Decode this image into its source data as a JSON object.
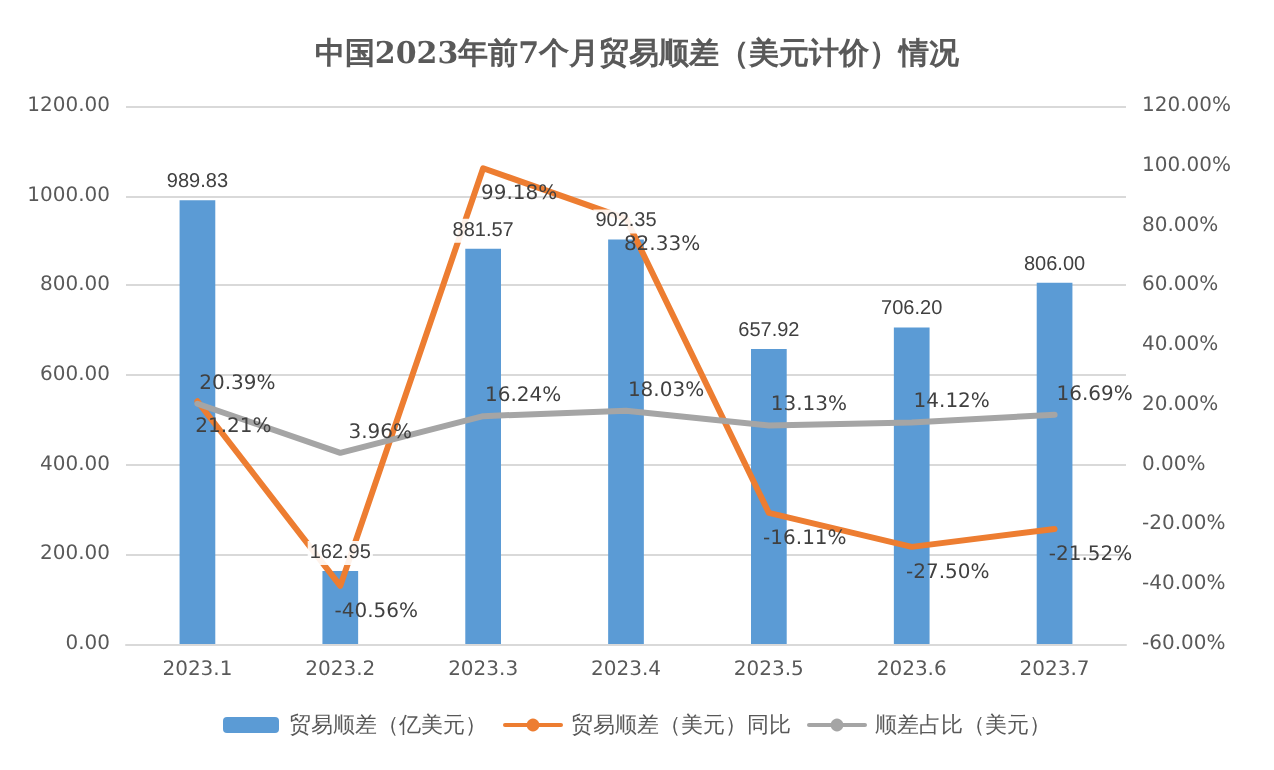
{
  "chart_data": {
    "type": "bar",
    "title": "中国2023年前7个月贸易顺差（美元计价）情况",
    "categories": [
      "2023.1",
      "2023.2",
      "2023.3",
      "2023.4",
      "2023.5",
      "2023.6",
      "2023.7"
    ],
    "series": [
      {
        "name": "贸易顺差（亿美元）",
        "type": "bar",
        "color": "#5b9bd5",
        "values": [
          989.83,
          162.95,
          881.57,
          902.35,
          657.92,
          706.2,
          806.0
        ],
        "value_labels": [
          "989.83",
          "162.95",
          "881.57",
          "902.35",
          "657.92",
          "706.20",
          "806.00"
        ]
      },
      {
        "name": "贸易顺差（美元）同比",
        "type": "line",
        "axis": "y2",
        "color": "#ed7d31",
        "values": [
          21.21,
          -40.56,
          99.18,
          82.33,
          -16.11,
          -27.5,
          -21.52
        ],
        "value_labels": [
          "21.21%",
          "-40.56%",
          "99.18%",
          "82.33%",
          "-16.11%",
          "-27.50%",
          "-21.52%"
        ]
      },
      {
        "name": "顺差占比（美元）",
        "type": "line",
        "axis": "y2",
        "color": "#a5a5a5",
        "values": [
          20.39,
          3.96,
          16.24,
          18.03,
          13.13,
          14.12,
          16.69
        ],
        "value_labels": [
          "20.39%",
          "3.96%",
          "16.24%",
          "18.03%",
          "13.13%",
          "14.12%",
          "16.69%"
        ]
      }
    ],
    "ylim": [
      0,
      1200
    ],
    "yticks": [
      {
        "value": 0,
        "label": "0.00"
      },
      {
        "value": 200,
        "label": "200.00"
      },
      {
        "value": 400,
        "label": "400.00"
      },
      {
        "value": 600,
        "label": "600.00"
      },
      {
        "value": 800,
        "label": "800.00"
      },
      {
        "value": 1000,
        "label": "1000.00"
      },
      {
        "value": 1200,
        "label": "1200.00"
      }
    ],
    "y2lim": [
      -60,
      120
    ],
    "y2ticks": [
      {
        "value": -60,
        "label": "-60.00%"
      },
      {
        "value": -40,
        "label": "-40.00%"
      },
      {
        "value": -20,
        "label": "-20.00%"
      },
      {
        "value": 0,
        "label": "0.00%"
      },
      {
        "value": 20,
        "label": "20.00%"
      },
      {
        "value": 40,
        "label": "40.00%"
      },
      {
        "value": 60,
        "label": "60.00%"
      },
      {
        "value": 80,
        "label": "80.00%"
      },
      {
        "value": 100,
        "label": "100.00%"
      },
      {
        "value": 120,
        "label": "120.00%"
      }
    ],
    "grid": "y",
    "legend": "bottom",
    "marker": "none",
    "line_style": "solid"
  }
}
